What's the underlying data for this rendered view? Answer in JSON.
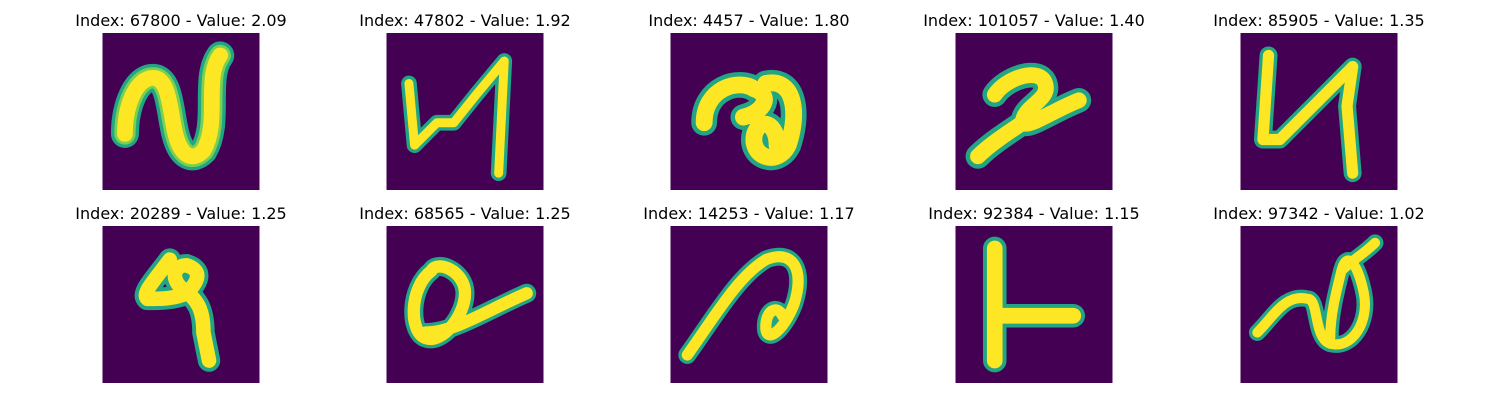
{
  "colors": {
    "background": "#440154",
    "stroke_core": "#fde725",
    "stroke_edge": "#21a585",
    "stroke_mid": "#7ad151"
  },
  "panels": [
    {
      "title": "Index: 67800 - Value: 2.09",
      "glyph": "digit-like stroke resembling 'N'"
    },
    {
      "title": "Index: 47802 - Value: 1.92",
      "glyph": "digit-like stroke resembling 'N' (angular)"
    },
    {
      "title": "Index: 4457 - Value: 1.80",
      "glyph": "digit-like stroke resembling 'a'"
    },
    {
      "title": "Index: 101057 - Value: 1.40",
      "glyph": "digit-like stroke resembling '2'"
    },
    {
      "title": "Index: 85905 - Value: 1.35",
      "glyph": "digit-like stroke resembling 'N' (tall)"
    },
    {
      "title": "Index: 20289 - Value: 1.25",
      "glyph": "digit-like stroke resembling '4/9'"
    },
    {
      "title": "Index: 68565 - Value: 1.25",
      "glyph": "digit-like stroke resembling 'a' (open loop)"
    },
    {
      "title": "Index: 14253 - Value: 1.17",
      "glyph": "digit-like stroke resembling 'n' with loop"
    },
    {
      "title": "Index: 92384 - Value: 1.15",
      "glyph": "digit-like stroke resembling 'L' / 't'"
    },
    {
      "title": "Index: 97342 - Value: 1.02",
      "glyph": "digit-like stroke resembling 'a' (tall loop)"
    }
  ]
}
